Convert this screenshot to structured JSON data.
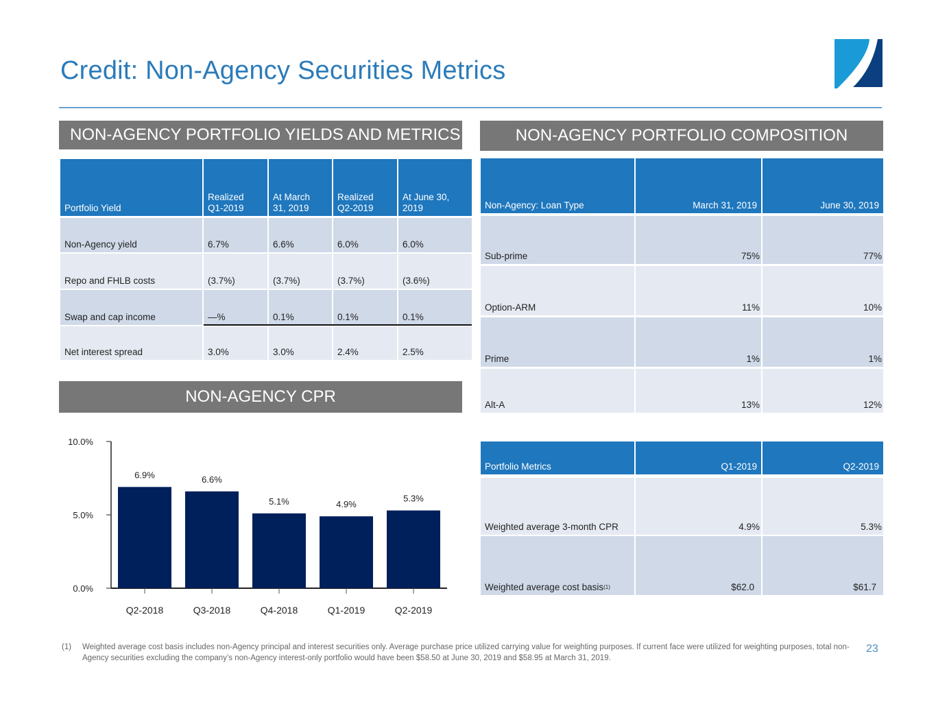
{
  "header": {
    "title": "Credit: Non-Agency Securities Metrics",
    "logo_icon": "company-logo-icon"
  },
  "colors": {
    "title": "#2b7bb9",
    "section_bar": "#777777",
    "table_header": "#1f77bd",
    "row_dark": "#cfd9e8",
    "row_light": "#e5eaf2",
    "bar": "#00205b"
  },
  "yields": {
    "section_title": "NON-AGENCY PORTFOLIO YIELDS AND METRICS",
    "headers": [
      "Portfolio Yield",
      "Realized Q1-2019",
      "At March 31, 2019",
      "Realized Q2-2019",
      "At June 30, 2019"
    ],
    "header_lines": [
      [
        "Portfolio Yield"
      ],
      [
        "Realized",
        "Q1-2019"
      ],
      [
        "At March",
        "31, 2019"
      ],
      [
        "Realized",
        "Q2-2019"
      ],
      [
        "At June 30,",
        "2019"
      ]
    ],
    "rows": [
      {
        "label": "Non-Agency yield",
        "values": [
          "6.7%",
          "6.6%",
          "6.0%",
          "6.0%"
        ]
      },
      {
        "label": "Repo and FHLB costs",
        "values": [
          "(3.7%)",
          "(3.7%)",
          "(3.7%)",
          "(3.6%)"
        ]
      },
      {
        "label": "Swap and cap income",
        "values": [
          "—%",
          "0.1%",
          "0.1%",
          "0.1%"
        ]
      },
      {
        "label": "Net interest spread",
        "values": [
          "3.0%",
          "3.0%",
          "2.4%",
          "2.5%"
        ]
      }
    ]
  },
  "composition": {
    "section_title": "NON-AGENCY PORTFOLIO COMPOSITION",
    "headers": [
      "Non-Agency: Loan Type",
      "March 31, 2019",
      "June 30, 2019"
    ],
    "rows": [
      {
        "label": "Sub-prime",
        "values": [
          "75%",
          "77%"
        ]
      },
      {
        "label": "Option-ARM",
        "values": [
          "11%",
          "10%"
        ]
      },
      {
        "label": "Prime",
        "values": [
          "1%",
          "1%"
        ]
      },
      {
        "label": "Alt-A",
        "values": [
          "13%",
          "12%"
        ]
      }
    ]
  },
  "metrics": {
    "headers": [
      "Portfolio Metrics",
      "Q1-2019",
      "Q2-2019"
    ],
    "rows": [
      {
        "label": "Weighted average 3-month CPR",
        "footnote": "",
        "values": [
          "4.9%",
          "5.3%"
        ]
      },
      {
        "label": "Weighted average cost basis",
        "footnote": "(1)",
        "values": [
          "$62.0",
          "$61.7"
        ]
      }
    ]
  },
  "cpr": {
    "section_title": "NON-AGENCY CPR"
  },
  "chart_data": {
    "type": "bar",
    "title": "NON-AGENCY CPR",
    "categories": [
      "Q2-2018",
      "Q3-2018",
      "Q4-2018",
      "Q1-2019",
      "Q2-2019"
    ],
    "values": [
      6.9,
      6.6,
      5.1,
      4.9,
      5.3
    ],
    "data_labels": [
      "6.9%",
      "6.6%",
      "5.1%",
      "4.9%",
      "5.3%"
    ],
    "xlabel": "",
    "ylabel": "",
    "ylim": [
      0,
      10
    ],
    "yticks": [
      0,
      5,
      10
    ],
    "ytick_labels": [
      "0.0%",
      "5.0%",
      "10.0%"
    ],
    "grid": false,
    "legend": "none"
  },
  "footnote": {
    "marker": "(1)",
    "text": "Weighted average cost basis includes non-Agency principal and interest securities only.  Average purchase price utilized carrying value for weighting purposes.  If current face were utilized for weighting purposes, total non-Agency securities excluding the company’s non-Agency interest-only portfolio would have been $58.50 at June 30, 2019 and $58.95 at March 31, 2019."
  },
  "page_number": "23"
}
